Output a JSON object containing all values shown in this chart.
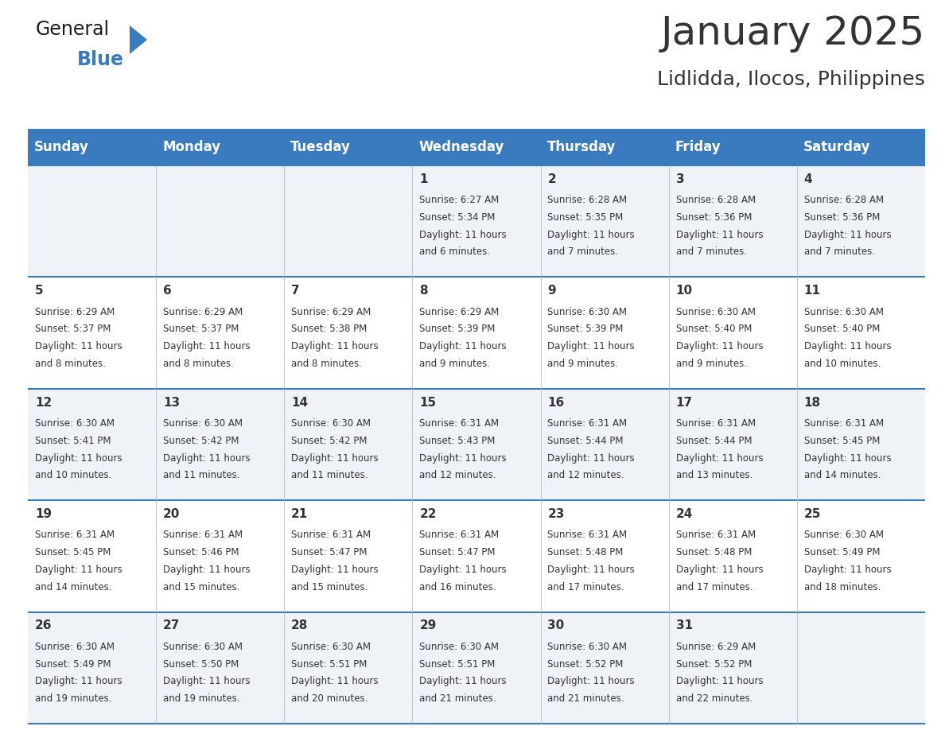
{
  "title": "January 2025",
  "subtitle": "Lidlidda, Ilocos, Philippines",
  "header_bg": "#3a7bbf",
  "header_text": "#ffffff",
  "row_bg_light": "#eff3f7",
  "row_bg_white": "#ffffff",
  "day_headers": [
    "Sunday",
    "Monday",
    "Tuesday",
    "Wednesday",
    "Thursday",
    "Friday",
    "Saturday"
  ],
  "calendar": [
    [
      {
        "day": "",
        "sunrise": "",
        "sunset": "",
        "daylight": ""
      },
      {
        "day": "",
        "sunrise": "",
        "sunset": "",
        "daylight": ""
      },
      {
        "day": "",
        "sunrise": "",
        "sunset": "",
        "daylight": ""
      },
      {
        "day": "1",
        "sunrise": "6:27 AM",
        "sunset": "5:34 PM",
        "daylight": "11 hours and 6 minutes."
      },
      {
        "day": "2",
        "sunrise": "6:28 AM",
        "sunset": "5:35 PM",
        "daylight": "11 hours and 7 minutes."
      },
      {
        "day": "3",
        "sunrise": "6:28 AM",
        "sunset": "5:36 PM",
        "daylight": "11 hours and 7 minutes."
      },
      {
        "day": "4",
        "sunrise": "6:28 AM",
        "sunset": "5:36 PM",
        "daylight": "11 hours and 7 minutes."
      }
    ],
    [
      {
        "day": "5",
        "sunrise": "6:29 AM",
        "sunset": "5:37 PM",
        "daylight": "11 hours and 8 minutes."
      },
      {
        "day": "6",
        "sunrise": "6:29 AM",
        "sunset": "5:37 PM",
        "daylight": "11 hours and 8 minutes."
      },
      {
        "day": "7",
        "sunrise": "6:29 AM",
        "sunset": "5:38 PM",
        "daylight": "11 hours and 8 minutes."
      },
      {
        "day": "8",
        "sunrise": "6:29 AM",
        "sunset": "5:39 PM",
        "daylight": "11 hours and 9 minutes."
      },
      {
        "day": "9",
        "sunrise": "6:30 AM",
        "sunset": "5:39 PM",
        "daylight": "11 hours and 9 minutes."
      },
      {
        "day": "10",
        "sunrise": "6:30 AM",
        "sunset": "5:40 PM",
        "daylight": "11 hours and 9 minutes."
      },
      {
        "day": "11",
        "sunrise": "6:30 AM",
        "sunset": "5:40 PM",
        "daylight": "11 hours and 10 minutes."
      }
    ],
    [
      {
        "day": "12",
        "sunrise": "6:30 AM",
        "sunset": "5:41 PM",
        "daylight": "11 hours and 10 minutes."
      },
      {
        "day": "13",
        "sunrise": "6:30 AM",
        "sunset": "5:42 PM",
        "daylight": "11 hours and 11 minutes."
      },
      {
        "day": "14",
        "sunrise": "6:30 AM",
        "sunset": "5:42 PM",
        "daylight": "11 hours and 11 minutes."
      },
      {
        "day": "15",
        "sunrise": "6:31 AM",
        "sunset": "5:43 PM",
        "daylight": "11 hours and 12 minutes."
      },
      {
        "day": "16",
        "sunrise": "6:31 AM",
        "sunset": "5:44 PM",
        "daylight": "11 hours and 12 minutes."
      },
      {
        "day": "17",
        "sunrise": "6:31 AM",
        "sunset": "5:44 PM",
        "daylight": "11 hours and 13 minutes."
      },
      {
        "day": "18",
        "sunrise": "6:31 AM",
        "sunset": "5:45 PM",
        "daylight": "11 hours and 14 minutes."
      }
    ],
    [
      {
        "day": "19",
        "sunrise": "6:31 AM",
        "sunset": "5:45 PM",
        "daylight": "11 hours and 14 minutes."
      },
      {
        "day": "20",
        "sunrise": "6:31 AM",
        "sunset": "5:46 PM",
        "daylight": "11 hours and 15 minutes."
      },
      {
        "day": "21",
        "sunrise": "6:31 AM",
        "sunset": "5:47 PM",
        "daylight": "11 hours and 15 minutes."
      },
      {
        "day": "22",
        "sunrise": "6:31 AM",
        "sunset": "5:47 PM",
        "daylight": "11 hours and 16 minutes."
      },
      {
        "day": "23",
        "sunrise": "6:31 AM",
        "sunset": "5:48 PM",
        "daylight": "11 hours and 17 minutes."
      },
      {
        "day": "24",
        "sunrise": "6:31 AM",
        "sunset": "5:48 PM",
        "daylight": "11 hours and 17 minutes."
      },
      {
        "day": "25",
        "sunrise": "6:30 AM",
        "sunset": "5:49 PM",
        "daylight": "11 hours and 18 minutes."
      }
    ],
    [
      {
        "day": "26",
        "sunrise": "6:30 AM",
        "sunset": "5:49 PM",
        "daylight": "11 hours and 19 minutes."
      },
      {
        "day": "27",
        "sunrise": "6:30 AM",
        "sunset": "5:50 PM",
        "daylight": "11 hours and 19 minutes."
      },
      {
        "day": "28",
        "sunrise": "6:30 AM",
        "sunset": "5:51 PM",
        "daylight": "11 hours and 20 minutes."
      },
      {
        "day": "29",
        "sunrise": "6:30 AM",
        "sunset": "5:51 PM",
        "daylight": "11 hours and 21 minutes."
      },
      {
        "day": "30",
        "sunrise": "6:30 AM",
        "sunset": "5:52 PM",
        "daylight": "11 hours and 21 minutes."
      },
      {
        "day": "31",
        "sunrise": "6:29 AM",
        "sunset": "5:52 PM",
        "daylight": "11 hours and 22 minutes."
      },
      {
        "day": "",
        "sunrise": "",
        "sunset": "",
        "daylight": ""
      }
    ]
  ],
  "header_color": "#3a7bbf",
  "divider_color": "#3a7bbf",
  "text_color": "#333333",
  "cell_border_color": "#b0bec8",
  "title_fontsize": 36,
  "subtitle_fontsize": 18,
  "header_fontsize": 12,
  "day_num_fontsize": 11,
  "cell_text_fontsize": 8.5
}
